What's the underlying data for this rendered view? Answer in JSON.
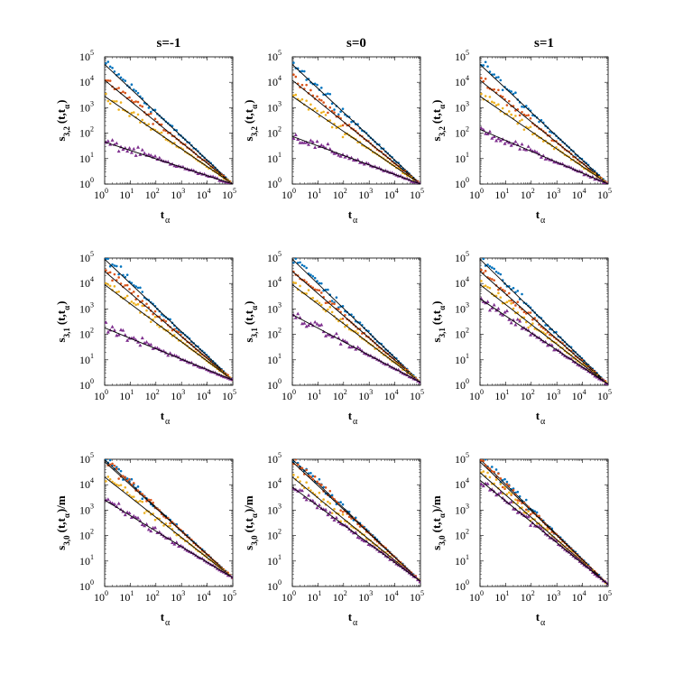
{
  "figure": {
    "column_titles": [
      "s=-1",
      "s=0",
      "s=1"
    ],
    "xlabel": "t",
    "xlabel_subscript": "α",
    "row_ylabels": [
      {
        "prefix": "s",
        "subscript": "3,2",
        "mid": "(t,t",
        "mid_sub": "α",
        "suffix": ")"
      },
      {
        "prefix": "s",
        "subscript": "3,1",
        "mid": "(t,t",
        "mid_sub": "α",
        "suffix": ")"
      },
      {
        "prefix": "s",
        "subscript": "3,0",
        "mid": "(t,t",
        "mid_sub": "α",
        "suffix": ")/m"
      }
    ],
    "tick_base": "10",
    "tick_exponents": [
      "0",
      "1",
      "2",
      "3",
      "4",
      "5"
    ]
  },
  "colors": {
    "blue": "#0072BD",
    "red": "#D95319",
    "orange": "#EDB120",
    "purple": "#7E2F8E",
    "fit": "#000000"
  },
  "chart_data": [
    {
      "type": "scatter",
      "column": "s=-1",
      "row": 1,
      "xscale": "log",
      "yscale": "log",
      "xlim": [
        1,
        100000
      ],
      "ylim": [
        1,
        100000
      ],
      "series": [
        {
          "color": "blue",
          "marker": "dot",
          "fit_start": 50000,
          "fit_end": 1
        },
        {
          "color": "red",
          "marker": "dot",
          "fit_start": 12000,
          "fit_end": 1
        },
        {
          "color": "orange",
          "marker": "dot",
          "fit_start": 2800,
          "fit_end": 1
        },
        {
          "color": "purple",
          "marker": "triangle",
          "fit_start": 45,
          "fit_end": 1
        }
      ]
    },
    {
      "type": "scatter",
      "column": "s=0",
      "row": 1,
      "xscale": "log",
      "yscale": "log",
      "xlim": [
        1,
        100000
      ],
      "ylim": [
        1,
        100000
      ],
      "series": [
        {
          "color": "blue",
          "marker": "dot",
          "fit_start": 50000,
          "fit_end": 1
        },
        {
          "color": "red",
          "marker": "dot",
          "fit_start": 12000,
          "fit_end": 1
        },
        {
          "color": "orange",
          "marker": "dot",
          "fit_start": 2800,
          "fit_end": 1
        },
        {
          "color": "purple",
          "marker": "triangle",
          "fit_start": 75,
          "fit_end": 1
        }
      ]
    },
    {
      "type": "scatter",
      "column": "s=1",
      "row": 1,
      "xscale": "log",
      "yscale": "log",
      "xlim": [
        1,
        100000
      ],
      "ylim": [
        1,
        100000
      ],
      "series": [
        {
          "color": "blue",
          "marker": "dot",
          "fit_start": 50000,
          "fit_end": 1
        },
        {
          "color": "red",
          "marker": "dot",
          "fit_start": 12000,
          "fit_end": 1
        },
        {
          "color": "orange",
          "marker": "dot",
          "fit_start": 2800,
          "fit_end": 1
        },
        {
          "color": "purple",
          "marker": "triangle",
          "fit_start": 140,
          "fit_end": 1
        }
      ]
    },
    {
      "type": "scatter",
      "column": "s=-1",
      "row": 2,
      "xscale": "log",
      "yscale": "log",
      "xlim": [
        1,
        100000
      ],
      "ylim": [
        1,
        100000
      ],
      "series": [
        {
          "color": "blue",
          "marker": "dot",
          "fit_start": 90000,
          "fit_end": 1.6
        },
        {
          "color": "red",
          "marker": "dot",
          "fit_start": 30000,
          "fit_end": 1.6
        },
        {
          "color": "orange",
          "marker": "dot",
          "fit_start": 9000,
          "fit_end": 1.6
        },
        {
          "color": "purple",
          "marker": "triangle",
          "fit_start": 180,
          "fit_end": 1.6
        }
      ]
    },
    {
      "type": "scatter",
      "column": "s=0",
      "row": 2,
      "xscale": "log",
      "yscale": "log",
      "xlim": [
        1,
        100000
      ],
      "ylim": [
        1,
        100000
      ],
      "series": [
        {
          "color": "blue",
          "marker": "dot",
          "fit_start": 90000,
          "fit_end": 1.3
        },
        {
          "color": "red",
          "marker": "dot",
          "fit_start": 30000,
          "fit_end": 1.3
        },
        {
          "color": "orange",
          "marker": "dot",
          "fit_start": 9000,
          "fit_end": 1.3
        },
        {
          "color": "purple",
          "marker": "triangle",
          "fit_start": 600,
          "fit_end": 1.3
        }
      ]
    },
    {
      "type": "scatter",
      "column": "s=1",
      "row": 2,
      "xscale": "log",
      "yscale": "log",
      "xlim": [
        1,
        100000
      ],
      "ylim": [
        1,
        100000
      ],
      "series": [
        {
          "color": "blue",
          "marker": "dot",
          "fit_start": 90000,
          "fit_end": 1.1
        },
        {
          "color": "red",
          "marker": "dot",
          "fit_start": 30000,
          "fit_end": 1.1
        },
        {
          "color": "orange",
          "marker": "dot",
          "fit_start": 9000,
          "fit_end": 1.1
        },
        {
          "color": "purple",
          "marker": "triangle",
          "fit_start": 2500,
          "fit_end": 1.1
        }
      ]
    },
    {
      "type": "scatter",
      "column": "s=-1",
      "row": 3,
      "xscale": "log",
      "yscale": "log",
      "xlim": [
        1,
        100000
      ],
      "ylim": [
        1,
        100000
      ],
      "series": [
        {
          "color": "blue",
          "marker": "dot",
          "fit_start": 95000,
          "fit_end": 2.2
        },
        {
          "color": "red",
          "marker": "dot",
          "fit_start": 80000,
          "fit_end": 2.2
        },
        {
          "color": "orange",
          "marker": "dot",
          "fit_start": 20000,
          "fit_end": 2.2
        },
        {
          "color": "purple",
          "marker": "triangle",
          "fit_start": 2500,
          "fit_end": 2.2
        }
      ]
    },
    {
      "type": "scatter",
      "column": "s=0",
      "row": 3,
      "xscale": "log",
      "yscale": "log",
      "xlim": [
        1,
        100000
      ],
      "ylim": [
        1,
        100000
      ],
      "series": [
        {
          "color": "blue",
          "marker": "dot",
          "fit_start": 100000,
          "fit_end": 1.6
        },
        {
          "color": "red",
          "marker": "dot",
          "fit_start": 80000,
          "fit_end": 1.6
        },
        {
          "color": "orange",
          "marker": "dot",
          "fit_start": 20000,
          "fit_end": 1.6
        },
        {
          "color": "purple",
          "marker": "triangle",
          "fit_start": 8000,
          "fit_end": 1.6
        }
      ]
    },
    {
      "type": "scatter",
      "column": "s=1",
      "row": 3,
      "xscale": "log",
      "yscale": "log",
      "xlim": [
        1,
        100000
      ],
      "ylim": [
        1,
        100000
      ],
      "series": [
        {
          "color": "blue",
          "marker": "dot",
          "fit_start": 100000,
          "fit_end": 1.2
        },
        {
          "color": "red",
          "marker": "dot",
          "fit_start": 80000,
          "fit_end": 1.2
        },
        {
          "color": "orange",
          "marker": "dot",
          "fit_start": 30000,
          "fit_end": 1.2
        },
        {
          "color": "purple",
          "marker": "triangle",
          "fit_start": 15000,
          "fit_end": 1.2
        }
      ]
    }
  ]
}
